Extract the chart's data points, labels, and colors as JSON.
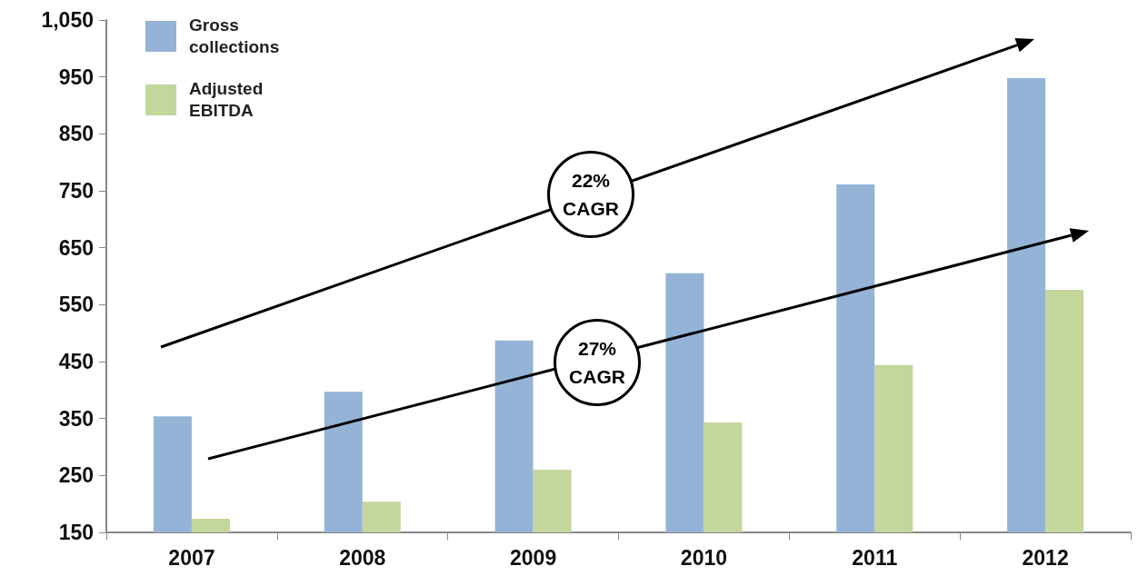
{
  "chart_data": {
    "type": "bar",
    "categories": [
      "2007",
      "2008",
      "2009",
      "2010",
      "2011",
      "2012"
    ],
    "series": [
      {
        "name": "Gross collections",
        "color": "#95b3d7",
        "values": [
          354,
          397,
          487,
          605,
          761,
          948
        ]
      },
      {
        "name": "Adjusted EBITDA",
        "color": "#c3d69b",
        "values": [
          174,
          204,
          260,
          343,
          444,
          576
        ]
      }
    ],
    "ylim": [
      150,
      1050
    ],
    "yticks": [
      150,
      250,
      350,
      450,
      550,
      650,
      750,
      850,
      950,
      {
        "value": 1050,
        "label": "1,050"
      }
    ],
    "grid": false,
    "legend": "top left",
    "annotations": [
      "22% CAGR",
      "27% CAGR"
    ]
  }
}
